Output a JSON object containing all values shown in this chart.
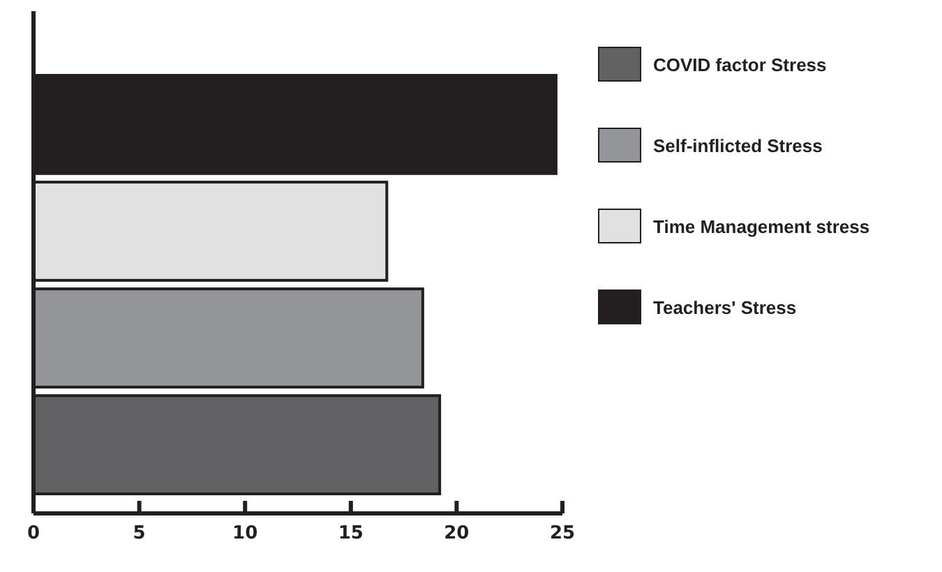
{
  "chart_data": {
    "type": "bar",
    "orientation": "horizontal",
    "categories": [
      null,
      null,
      null,
      null
    ],
    "series": [
      {
        "name": "COVID factor Stress",
        "color": "#626164",
        "values": [
          null,
          null,
          null,
          19.2
        ]
      },
      {
        "name": "Self-inflicted Stress",
        "color": "#939598",
        "values": [
          null,
          null,
          18.4,
          null
        ]
      },
      {
        "name": "Time Management stress",
        "color": "#e1e1e1",
        "values": [
          null,
          16.7,
          null,
          null
        ]
      },
      {
        "name": "Teachers' Stress",
        "color": "#231f20",
        "values": [
          24.7,
          null,
          null,
          null
        ]
      }
    ],
    "xlim": [
      0,
      25
    ],
    "xticks": [
      0,
      5,
      10,
      15,
      20,
      25
    ],
    "legend": "right"
  }
}
